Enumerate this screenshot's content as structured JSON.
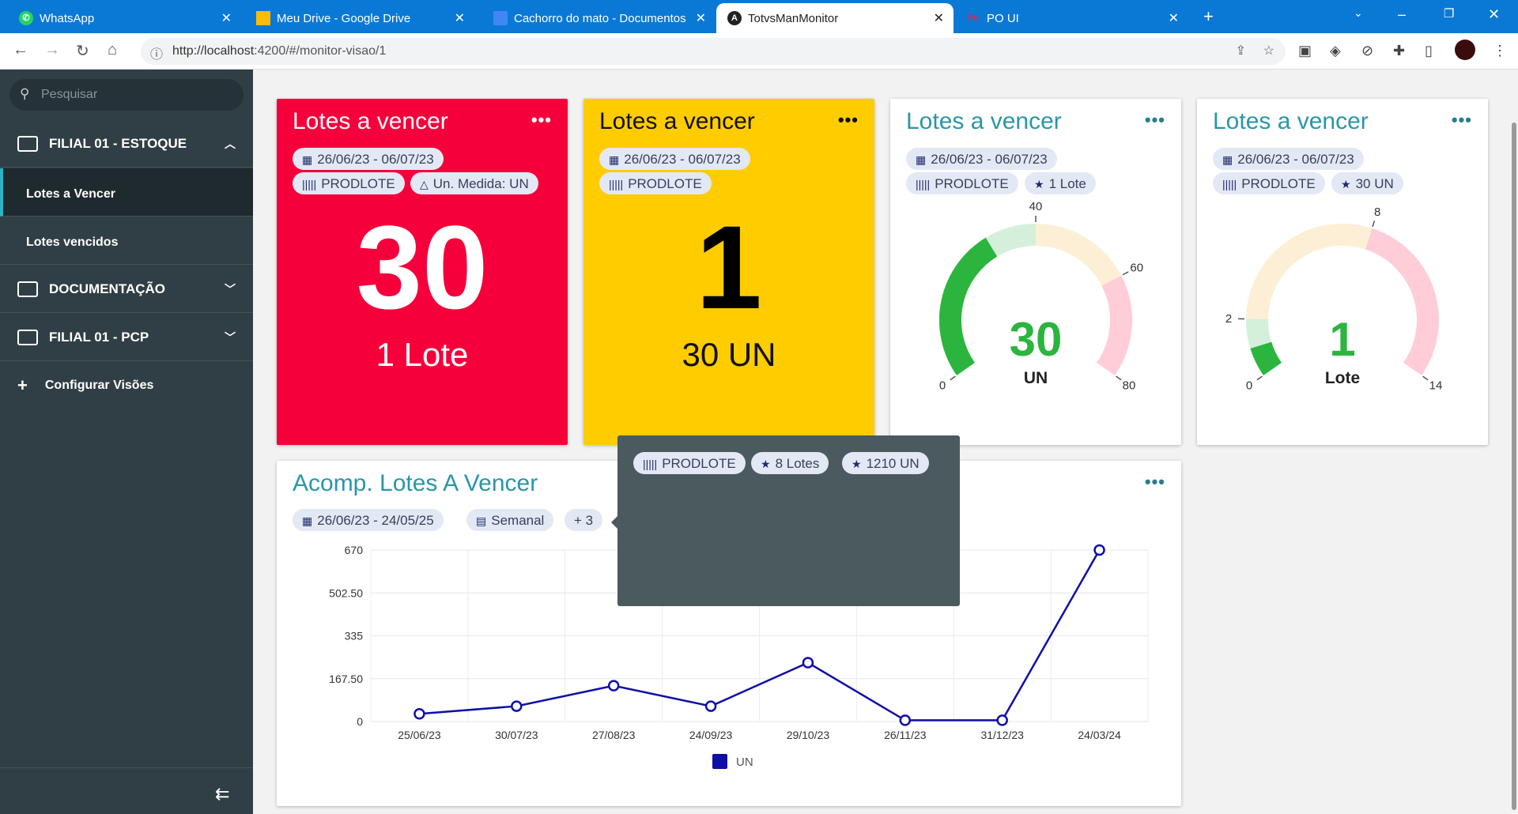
{
  "browser": {
    "tabs": [
      {
        "label": "WhatsApp",
        "icon": "whatsapp-icon"
      },
      {
        "label": "Meu Drive - Google Drive",
        "icon": "drive-icon"
      },
      {
        "label": "Cachorro do mato - Documentos",
        "icon": "docs-icon"
      },
      {
        "label": "TotvsManMonitor",
        "icon": "angular-icon"
      },
      {
        "label": "PO UI",
        "icon": "po-icon"
      }
    ],
    "url_host": "http://localhost",
    "url_rest": ":4200/#/monitor-visao/1"
  },
  "sidebar": {
    "search_placeholder": "Pesquisar",
    "groups": [
      {
        "label": "FILIAL 01 - ESTOQUE"
      },
      {
        "label": "DOCUMENTAÇÃO"
      },
      {
        "label": "FILIAL 01 - PCP"
      }
    ],
    "items": [
      {
        "label": "Lotes a Vencer"
      },
      {
        "label": "Lotes vencidos"
      }
    ],
    "config": "Configurar Visões"
  },
  "cards": [
    {
      "title": "Lotes a vencer",
      "date": "26/06/23 - 06/07/23",
      "chips": [
        "PRODLOTE",
        "Un. Medida: UN"
      ],
      "value": "30",
      "sub": "1 Lote",
      "bg": "#f5003a"
    },
    {
      "title": "Lotes a vencer",
      "date": "26/06/23 - 06/07/23",
      "chips": [
        "PRODLOTE"
      ],
      "value": "1",
      "sub": "30 UN",
      "bg": "#ffcc00"
    },
    {
      "title": "Lotes a vencer",
      "date": "26/06/23 - 06/07/23",
      "chips": [
        "PRODLOTE",
        "1 Lote"
      ],
      "value": "30",
      "unit": "UN",
      "gauge": {
        "min": 0,
        "max": 80,
        "value": 30,
        "ticks": [
          "0",
          "40",
          "60",
          "80"
        ],
        "bands": [
          [
            0,
            40,
            "#d4f0da"
          ],
          [
            40,
            60,
            "#fdefd6"
          ],
          [
            60,
            80,
            "#ffcdd7"
          ]
        ]
      }
    },
    {
      "title": "Lotes a vencer",
      "date": "26/06/23 - 06/07/23",
      "chips": [
        "PRODLOTE",
        "30 UN"
      ],
      "value": "1",
      "unit": "Lote",
      "gauge": {
        "min": 0,
        "max": 14,
        "value": 1,
        "ticks": [
          "0",
          "2",
          "8",
          "14"
        ],
        "bands": [
          [
            0,
            2,
            "#d4f0da"
          ],
          [
            2,
            8,
            "#fdefd6"
          ],
          [
            8,
            14,
            "#ffcdd7"
          ]
        ]
      }
    }
  ],
  "chart_card": {
    "title": "Acomp. Lotes A Vencer",
    "date": "26/06/23 - 24/05/25",
    "period": "Semanal",
    "more": "+ 3"
  },
  "tooltip": {
    "chips": [
      "PRODLOTE",
      "8 Lotes",
      "1210 UN"
    ]
  },
  "chart_data": {
    "type": "line",
    "categories": [
      "25/06/23",
      "30/07/23",
      "27/08/23",
      "24/09/23",
      "29/10/23",
      "26/11/23",
      "31/12/23",
      "24/03/24"
    ],
    "series": [
      {
        "name": "UN",
        "values": [
          30,
          60,
          140,
          60,
          230,
          5,
          5,
          670
        ],
        "color": "#0f0fa5"
      }
    ],
    "yticks": [
      "0",
      "167.50",
      "335",
      "502.50",
      "670"
    ],
    "ylim": [
      0,
      670
    ],
    "legend": "bottom"
  }
}
